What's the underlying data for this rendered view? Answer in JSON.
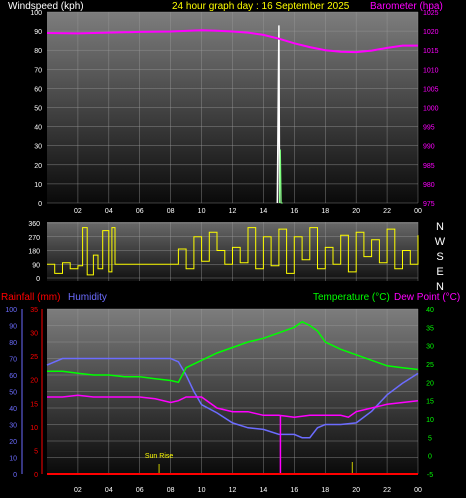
{
  "colors": {
    "wind": "#ffffff",
    "barometer": "#ff00ff",
    "title": "#ffff00",
    "direction": "#ffff00",
    "rain": "#ff0000",
    "humidity": "#6c6cff",
    "temperature": "#00ff00",
    "dewpoint": "#ff00ff",
    "axis_left_bottom": "#ff0000",
    "axis_humidity": "#6c6cff"
  },
  "chart_data": [
    {
      "type": "line",
      "title": "24 hour graph day : 16 September 2025",
      "ylabel": "Windspeed (kph)",
      "y2label": "Barometer (hpa)",
      "ylim": [
        0,
        100
      ],
      "y2lim": [
        975,
        1025
      ],
      "yticks": [
        "0",
        "10",
        "20",
        "30",
        "40",
        "50",
        "60",
        "70",
        "80",
        "90",
        "100"
      ],
      "y2ticks": [
        "975",
        "980",
        "985",
        "990",
        "995",
        "1000",
        "1005",
        "1010",
        "1015",
        "1020",
        "1025"
      ],
      "xticks": [
        "02",
        "04",
        "06",
        "08",
        "10",
        "12",
        "14",
        "16",
        "18",
        "20",
        "22",
        "00"
      ],
      "grid": true,
      "series": [
        {
          "name": "Barometer (hpa)",
          "axis": "right",
          "x": [
            0,
            2,
            4,
            6,
            8,
            10,
            11,
            12,
            13,
            14,
            15,
            16,
            17,
            18,
            19,
            20,
            21,
            22,
            23,
            24
          ],
          "values": [
            1019.5,
            1019.4,
            1019.6,
            1019.8,
            1019.9,
            1020.2,
            1020.1,
            1019.9,
            1019.6,
            1019.0,
            1018.0,
            1016.8,
            1015.8,
            1015.0,
            1014.6,
            1014.5,
            1014.9,
            1015.6,
            1016.2,
            1016.2
          ]
        },
        {
          "name": "Windspeed (kph)",
          "axis": "left",
          "x": [
            14.9,
            15.0,
            15.05,
            15.1,
            15.15,
            15.2,
            15.25
          ],
          "values": [
            0,
            93,
            0,
            28,
            0,
            0,
            0
          ]
        }
      ]
    },
    {
      "type": "line",
      "ylabel": "",
      "ylim": [
        0,
        360
      ],
      "yticks": [
        "0",
        "90",
        "180",
        "270",
        "360"
      ],
      "compass": [
        "N",
        "W",
        "S",
        "E",
        "N"
      ],
      "xticks": [
        "02",
        "04",
        "06",
        "08",
        "10",
        "12",
        "14",
        "16",
        "18",
        "20",
        "22",
        "00"
      ],
      "series": [
        {
          "name": "Wind direction",
          "x": [
            0,
            0.5,
            1,
            1.5,
            2,
            2.3,
            2.6,
            3,
            3.3,
            3.6,
            4,
            4.2,
            4.4,
            5,
            6,
            7,
            8,
            8.5,
            9,
            9.5,
            10,
            10.5,
            11,
            11.5,
            12,
            12.5,
            13,
            13.5,
            14,
            14.5,
            15,
            15.5,
            16,
            16.5,
            17,
            17.5,
            18,
            18.5,
            19,
            19.5,
            20,
            20.5,
            21,
            21.5,
            22,
            22.5,
            23,
            23.5,
            24
          ],
          "values": [
            90,
            30,
            100,
            60,
            80,
            330,
            20,
            150,
            60,
            310,
            40,
            330,
            90,
            90,
            90,
            90,
            90,
            190,
            60,
            270,
            110,
            300,
            180,
            90,
            200,
            100,
            330,
            60,
            270,
            80,
            320,
            30,
            270,
            120,
            330,
            60,
            200,
            90,
            280,
            40,
            300,
            140,
            250,
            100,
            320,
            60,
            180,
            90,
            280
          ]
        }
      ]
    },
    {
      "type": "line",
      "ylabel_left": "Rainfall (mm)",
      "ylabel_left2": "Humidity",
      "ylabel_right": "Temperature (°C)",
      "ylabel_right2": "Dew Point (°C)",
      "humidity_ticks": [
        "0",
        "10",
        "20",
        "30",
        "40",
        "50",
        "60",
        "70",
        "80",
        "90",
        "100"
      ],
      "rain_ticks": [
        "0",
        "5",
        "10",
        "15",
        "20",
        "25",
        "30",
        "35"
      ],
      "temp_ticks": [
        "-5",
        "0",
        "5",
        "10",
        "15",
        "20",
        "25",
        "30",
        "35",
        "40"
      ],
      "humidity_lim": [
        0,
        100
      ],
      "rain_lim": [
        0,
        35
      ],
      "temp_lim": [
        -5,
        40
      ],
      "xticks": [
        "02",
        "04",
        "06",
        "08",
        "10",
        "12",
        "14",
        "16",
        "18",
        "20",
        "22",
        "00"
      ],
      "annotation": "Sun Rise",
      "sunrise_x": 7.25,
      "sunset_x": 19.75,
      "series": [
        {
          "name": "Humidity",
          "axis": "humidity",
          "x": [
            0,
            1,
            2,
            3,
            4,
            5,
            6,
            7,
            8,
            8.5,
            9,
            9.5,
            10,
            11,
            12,
            13,
            14,
            15,
            16,
            16.5,
            17,
            17.5,
            18,
            19,
            20,
            21,
            22,
            23,
            24
          ],
          "values": [
            66,
            70,
            70,
            70,
            70,
            70,
            70,
            70,
            70,
            68,
            60,
            50,
            42,
            37,
            31,
            28,
            27,
            24,
            24,
            22,
            22,
            28,
            30,
            30,
            31,
            38,
            48,
            55,
            61
          ]
        },
        {
          "name": "Temperature (°C)",
          "axis": "temp",
          "x": [
            0,
            1,
            2,
            3,
            4,
            5,
            6,
            7,
            8,
            8.5,
            9,
            10,
            11,
            12,
            13,
            14,
            15,
            16,
            16.5,
            17,
            17.5,
            18,
            19,
            20,
            21,
            22,
            23,
            24
          ],
          "values": [
            23,
            23,
            22.5,
            22,
            22,
            21.5,
            21.5,
            21,
            20.5,
            20,
            24,
            26,
            28,
            29.5,
            31,
            32,
            33.5,
            35,
            36.5,
            35.5,
            34,
            31,
            29,
            27.5,
            26,
            24.5,
            24,
            23.5
          ]
        },
        {
          "name": "Dew Point (°C)",
          "axis": "temp",
          "x": [
            0,
            1,
            2,
            3,
            4,
            5,
            6,
            7,
            8,
            8.5,
            9,
            10,
            11,
            12,
            13,
            14,
            15,
            16,
            17,
            18,
            19,
            19.5,
            20,
            21,
            22,
            23,
            24
          ],
          "values": [
            16,
            16,
            16.5,
            16,
            16,
            16,
            16,
            15.5,
            14.5,
            15,
            16,
            16,
            13,
            12,
            12,
            11,
            11,
            10.5,
            11,
            11,
            11,
            10.5,
            12,
            13,
            14,
            14.5,
            15
          ]
        },
        {
          "name": "Rainfall (mm)",
          "axis": "rain",
          "x": [
            0,
            24
          ],
          "values": [
            0,
            0
          ]
        }
      ]
    }
  ]
}
